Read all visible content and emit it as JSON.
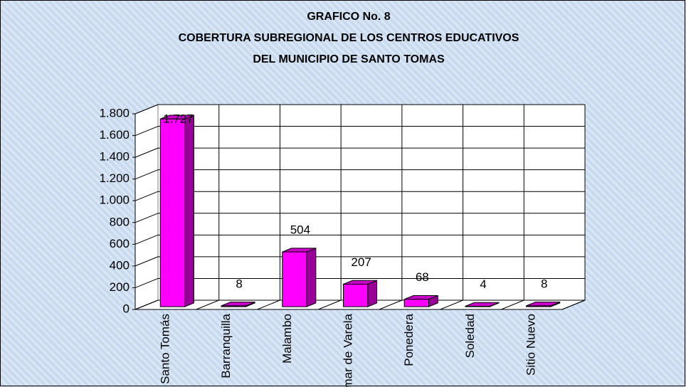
{
  "chart_data": {
    "type": "bar3d",
    "title": [
      "GRAFICO No. 8",
      "COBERTURA SUBREGIONAL DE LOS CENTROS EDUCATIVOS",
      "DEL MUNICIPIO DE SANTO TOMAS"
    ],
    "categories": [
      "Santo Tomás",
      "Barranquilla",
      "Malambo",
      "Palmar de Varela",
      "Ponedera",
      "Soledad",
      "Sitio Nuevo"
    ],
    "values": [
      1727,
      8,
      504,
      207,
      68,
      4,
      8
    ],
    "value_labels": [
      "1.727",
      "8",
      "504",
      "207",
      "68",
      "4",
      "8"
    ],
    "color": "#ff00ff",
    "side_color": "#990099",
    "top_color": "#cc00cc",
    "ylim": [
      0,
      1800
    ],
    "yticks": [
      0,
      200,
      400,
      600,
      800,
      {
        "value": 1000,
        "label": "1.000"
      },
      {
        "value": 1200,
        "label": "1.200"
      },
      {
        "value": 1400,
        "label": "1.400"
      },
      {
        "value": 1600,
        "label": "1.600"
      },
      {
        "value": 1800,
        "label": "1.800"
      }
    ],
    "grid": true
  }
}
